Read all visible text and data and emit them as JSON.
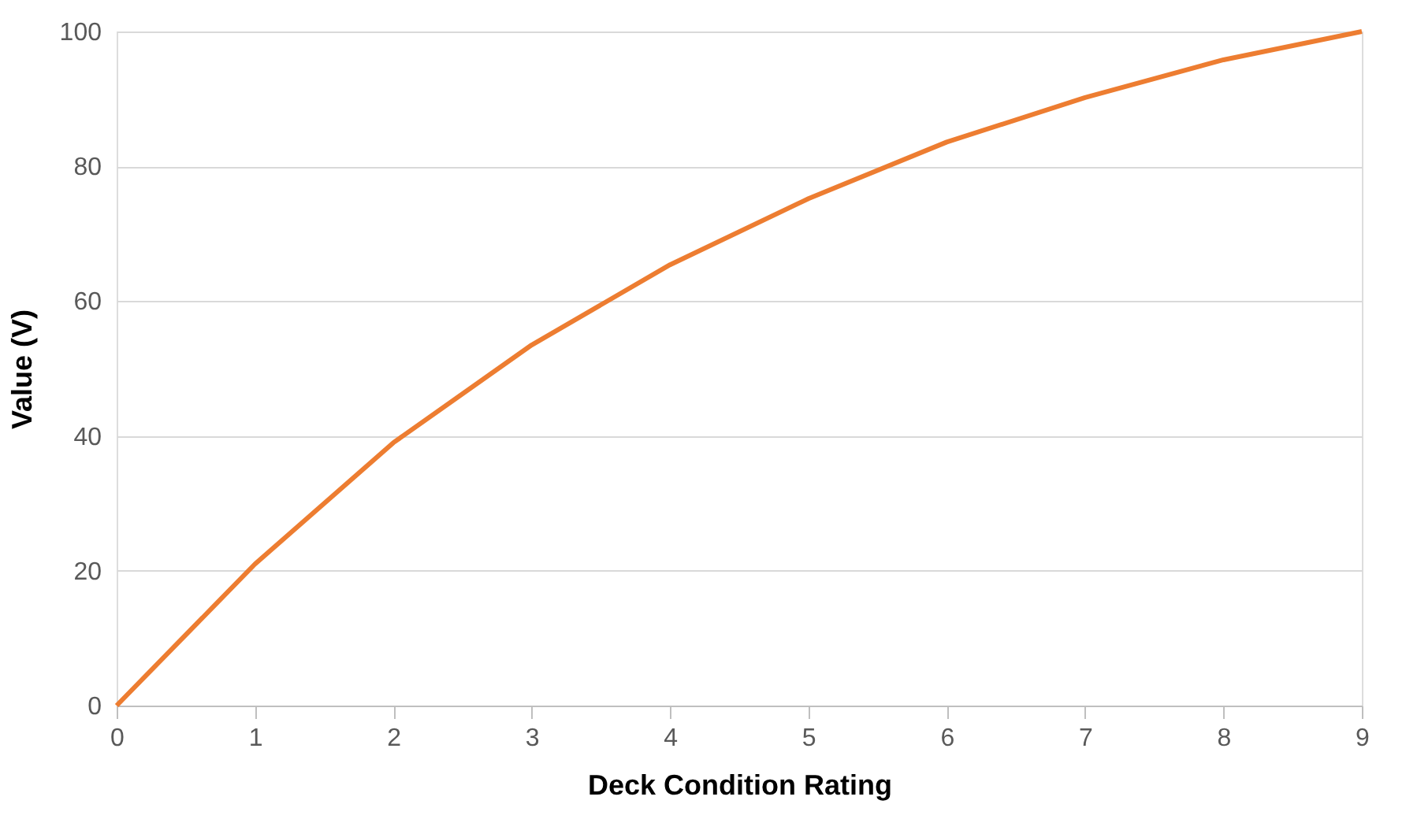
{
  "chart_data": {
    "type": "line",
    "xlabel": "Deck Condition Rating",
    "ylabel": "Value (V)",
    "x": [
      0,
      1,
      2,
      3,
      4,
      5,
      6,
      7,
      8,
      9
    ],
    "series": [
      {
        "color": "#ed7d31",
        "values": [
          0,
          21,
          39,
          53.5,
          65.4,
          75.2,
          83.6,
          90.2,
          95.8,
          100
        ]
      }
    ],
    "xlim": [
      0,
      9
    ],
    "xticks": [
      0,
      1,
      2,
      3,
      4,
      5,
      6,
      7,
      8,
      9
    ],
    "ylim": [
      0,
      100
    ],
    "yticks": [
      0,
      20,
      40,
      60,
      80,
      100
    ],
    "grid": "y",
    "marker": "none",
    "line_style": "solid"
  }
}
